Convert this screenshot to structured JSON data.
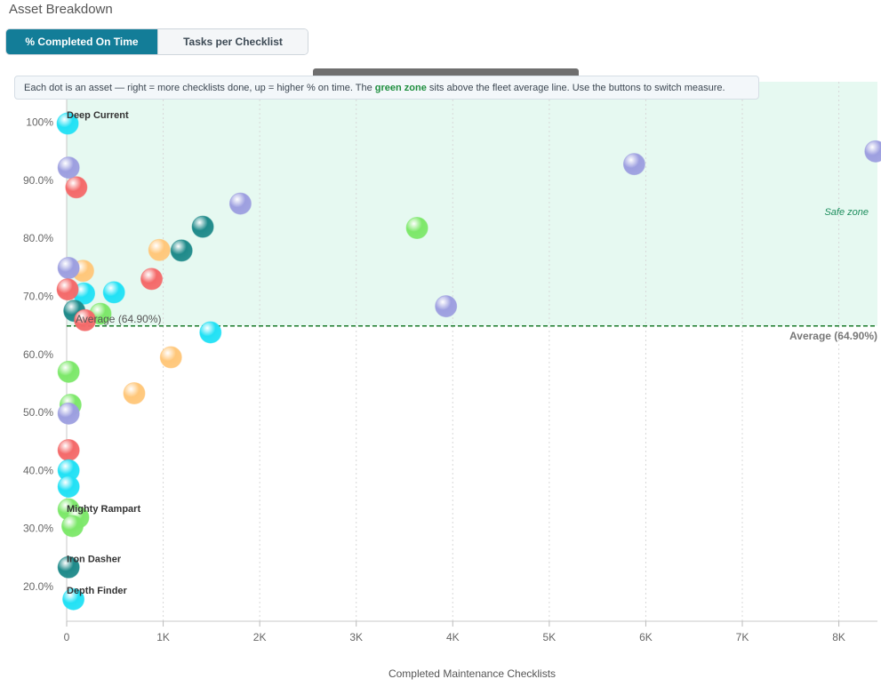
{
  "page": {
    "title": "Asset Breakdown"
  },
  "toggle": {
    "active_label": "% Completed On Time",
    "inactive_label": "Tasks per Checklist"
  },
  "banner": {
    "text_before": "Each dot is an asset — right = more checklists done, up = higher % on time. The ",
    "highlight": "green zone",
    "text_after": " sits above the fleet average line. Use the buttons to switch measure."
  },
  "colors": {
    "zone_fill": "#e6f9f1",
    "avg_line": "#1a7a2a",
    "accent": "#137d98",
    "palette": [
      "#22e1f5",
      "#9d9fe0",
      "#f46a6a",
      "#ffc77a",
      "#7de86a",
      "#1f8a8a"
    ]
  },
  "chart_data": {
    "type": "scatter",
    "title": "",
    "xlabel": "Completed Maintenance Checklists",
    "ylabel": "",
    "xlim": [
      0,
      8400
    ],
    "ylim": [
      14,
      107
    ],
    "x_ticks": [
      0,
      1000,
      2000,
      3000,
      4000,
      5000,
      6000,
      7000,
      8000
    ],
    "x_tick_labels": [
      "0",
      "1K",
      "2K",
      "3K",
      "4K",
      "5K",
      "6K",
      "7K",
      "8K"
    ],
    "y_ticks": [
      20,
      30,
      40,
      50,
      60,
      70,
      80,
      90,
      100
    ],
    "y_tick_labels": [
      "20.0%",
      "30.0%",
      "40.0%",
      "50.0%",
      "60.0%",
      "70.0%",
      "80.0%",
      "90.0%",
      "100%"
    ],
    "grid": true,
    "average": {
      "value": 64.9,
      "label": "Average (64.90%)",
      "inner_label": "Average (64.90%)"
    },
    "zone_label": "Safe zone",
    "points": [
      {
        "x": 8380,
        "y": 95,
        "color": 1
      },
      {
        "x": 5880,
        "y": 92.8,
        "color": 1
      },
      {
        "x": 3630,
        "y": 81.8,
        "color": 4
      },
      {
        "x": 3930,
        "y": 68.3,
        "color": 1
      },
      {
        "x": 1800,
        "y": 86,
        "color": 1
      },
      {
        "x": 1410,
        "y": 82,
        "color": 5
      },
      {
        "x": 1190,
        "y": 77.9,
        "color": 5
      },
      {
        "x": 960,
        "y": 78,
        "color": 3
      },
      {
        "x": 880,
        "y": 73,
        "color": 2
      },
      {
        "x": 1490,
        "y": 63.8,
        "color": 0
      },
      {
        "x": 1080,
        "y": 59.5,
        "color": 3
      },
      {
        "x": 700,
        "y": 53.3,
        "color": 3
      },
      {
        "x": 490,
        "y": 70.7,
        "color": 0
      },
      {
        "x": 350,
        "y": 67,
        "color": 4
      },
      {
        "x": 170,
        "y": 74.4,
        "color": 3
      },
      {
        "x": 180,
        "y": 70.5,
        "color": 0
      },
      {
        "x": 100,
        "y": 88.8,
        "color": 2
      },
      {
        "x": 20,
        "y": 92.2,
        "color": 1
      },
      {
        "x": 10,
        "y": 99.8,
        "color": 0,
        "label": "Deep Current"
      },
      {
        "x": 20,
        "y": 74.9,
        "color": 1
      },
      {
        "x": 10,
        "y": 71.2,
        "color": 2
      },
      {
        "x": 80,
        "y": 67.5,
        "color": 5
      },
      {
        "x": 190,
        "y": 65.9,
        "color": 2
      },
      {
        "x": 20,
        "y": 57,
        "color": 4
      },
      {
        "x": 40,
        "y": 51.3,
        "color": 4
      },
      {
        "x": 20,
        "y": 49.8,
        "color": 1
      },
      {
        "x": 20,
        "y": 43.5,
        "color": 2
      },
      {
        "x": 20,
        "y": 40,
        "color": 0
      },
      {
        "x": 20,
        "y": 37.2,
        "color": 0
      },
      {
        "x": 20,
        "y": 33.3,
        "color": 4
      },
      {
        "x": 120,
        "y": 31.9,
        "color": 4,
        "label": "Mighty Rampart"
      },
      {
        "x": 60,
        "y": 30.4,
        "color": 4
      },
      {
        "x": 20,
        "y": 23.3,
        "color": 5,
        "label": "Iron Dasher"
      },
      {
        "x": 70,
        "y": 17.8,
        "color": 0,
        "label": "Depth Finder"
      }
    ]
  }
}
